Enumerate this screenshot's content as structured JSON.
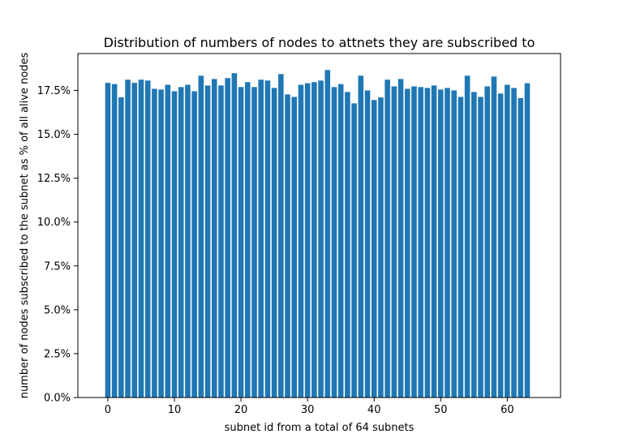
{
  "chart_data": {
    "type": "bar",
    "title": "Distribution of numbers of nodes to attnets they are subscribed to",
    "xlabel": "subnet id from a total of 64 subnets",
    "ylabel": "number of nodes subscribed to the subnet as % of all alive nodes",
    "bar_color": "#1f77b4",
    "grid": false,
    "xlim": [
      -4.5,
      68
    ],
    "ylim": [
      0,
      19.6
    ],
    "x_ticks": [
      0,
      10,
      20,
      30,
      40,
      50,
      60
    ],
    "y_ticks": [
      0.0,
      2.5,
      5.0,
      7.5,
      10.0,
      12.5,
      15.0,
      17.5
    ],
    "y_tick_labels": [
      "0.0%",
      "2.5%",
      "5.0%",
      "7.5%",
      "10.0%",
      "12.5%",
      "15.0%",
      "17.5%"
    ],
    "categories": [
      0,
      1,
      2,
      3,
      4,
      5,
      6,
      7,
      8,
      9,
      10,
      11,
      12,
      13,
      14,
      15,
      16,
      17,
      18,
      19,
      20,
      21,
      22,
      23,
      24,
      25,
      26,
      27,
      28,
      29,
      30,
      31,
      32,
      33,
      34,
      35,
      36,
      37,
      38,
      39,
      40,
      41,
      42,
      43,
      44,
      45,
      46,
      47,
      48,
      49,
      50,
      51,
      52,
      53,
      54,
      55,
      56,
      57,
      58,
      59,
      60,
      61,
      62,
      63
    ],
    "values": [
      17.93,
      17.86,
      17.11,
      18.11,
      17.93,
      18.11,
      18.06,
      17.59,
      17.55,
      17.82,
      17.45,
      17.69,
      17.82,
      17.45,
      18.34,
      17.78,
      18.15,
      17.78,
      18.2,
      18.48,
      17.69,
      17.97,
      17.69,
      18.11,
      18.06,
      17.64,
      18.43,
      17.27,
      17.13,
      17.82,
      17.91,
      17.97,
      18.06,
      18.66,
      17.69,
      17.86,
      17.41,
      16.76,
      18.34,
      17.5,
      16.95,
      17.1,
      18.11,
      17.73,
      18.15,
      17.59,
      17.73,
      17.69,
      17.64,
      17.78,
      17.55,
      17.64,
      17.5,
      17.13,
      18.34,
      17.41,
      17.13,
      17.73,
      18.29,
      17.32,
      17.82,
      17.64,
      17.06,
      17.91
    ]
  }
}
